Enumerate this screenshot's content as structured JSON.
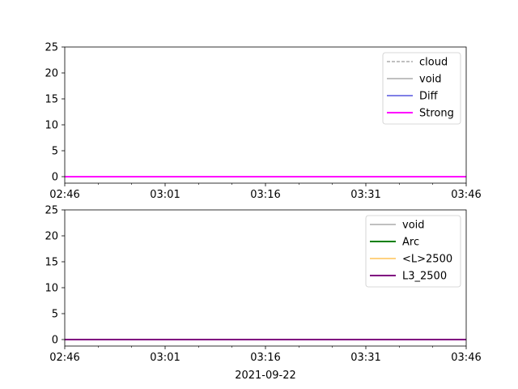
{
  "chart_data": [
    {
      "type": "line",
      "x_ticks": [
        "02:46",
        "03:01",
        "03:16",
        "03:31",
        "03:46"
      ],
      "xlim": [
        "02:46",
        "03:46"
      ],
      "minor_ticks_between_majors": 2,
      "y_ticks": [
        "0",
        "5",
        "10",
        "15",
        "20",
        "25"
      ],
      "ylim": [
        -1.25,
        25
      ],
      "grid": false,
      "legend_position": "top-right",
      "series": [
        {
          "name": "cloud",
          "color": "#808080",
          "style": "dashed",
          "x": [
            "02:46",
            "03:46"
          ],
          "values": [
            0,
            0
          ]
        },
        {
          "name": "void",
          "color": "#808080",
          "style": "solid",
          "x": [
            "02:46",
            "03:46"
          ],
          "values": [
            0,
            0
          ]
        },
        {
          "name": "Diff",
          "color": "#0000cd",
          "style": "solid",
          "x": [
            "02:46",
            "03:46"
          ],
          "values": [
            0,
            0
          ]
        },
        {
          "name": "Strong",
          "color": "#ff00ff",
          "style": "solid-thick",
          "x": [
            "02:46",
            "03:46"
          ],
          "values": [
            0,
            0
          ]
        }
      ]
    },
    {
      "type": "line",
      "x_ticks": [
        "02:46",
        "03:01",
        "03:16",
        "03:31",
        "03:46"
      ],
      "xlim": [
        "02:46",
        "03:46"
      ],
      "minor_ticks_between_majors": 2,
      "y_ticks": [
        "0",
        "5",
        "10",
        "15",
        "20",
        "25"
      ],
      "ylim": [
        -1.25,
        25
      ],
      "grid": false,
      "legend_position": "top-right",
      "xlabel": "2021-09-22",
      "series": [
        {
          "name": "void",
          "color": "#808080",
          "style": "solid",
          "x": [
            "02:46",
            "03:46"
          ],
          "values": [
            0,
            0
          ]
        },
        {
          "name": "Arc",
          "color": "#008000",
          "style": "solid-thick",
          "x": [
            "02:46",
            "03:46"
          ],
          "values": [
            0,
            0
          ]
        },
        {
          "name": "<L>2500",
          "color": "#ffa500",
          "style": "solid",
          "x": [
            "02:46",
            "03:46"
          ],
          "values": [
            0,
            0
          ]
        },
        {
          "name": "L3_2500",
          "color": "#800080",
          "style": "solid-thick",
          "x": [
            "02:46",
            "03:46"
          ],
          "values": [
            0,
            0
          ]
        }
      ]
    }
  ]
}
